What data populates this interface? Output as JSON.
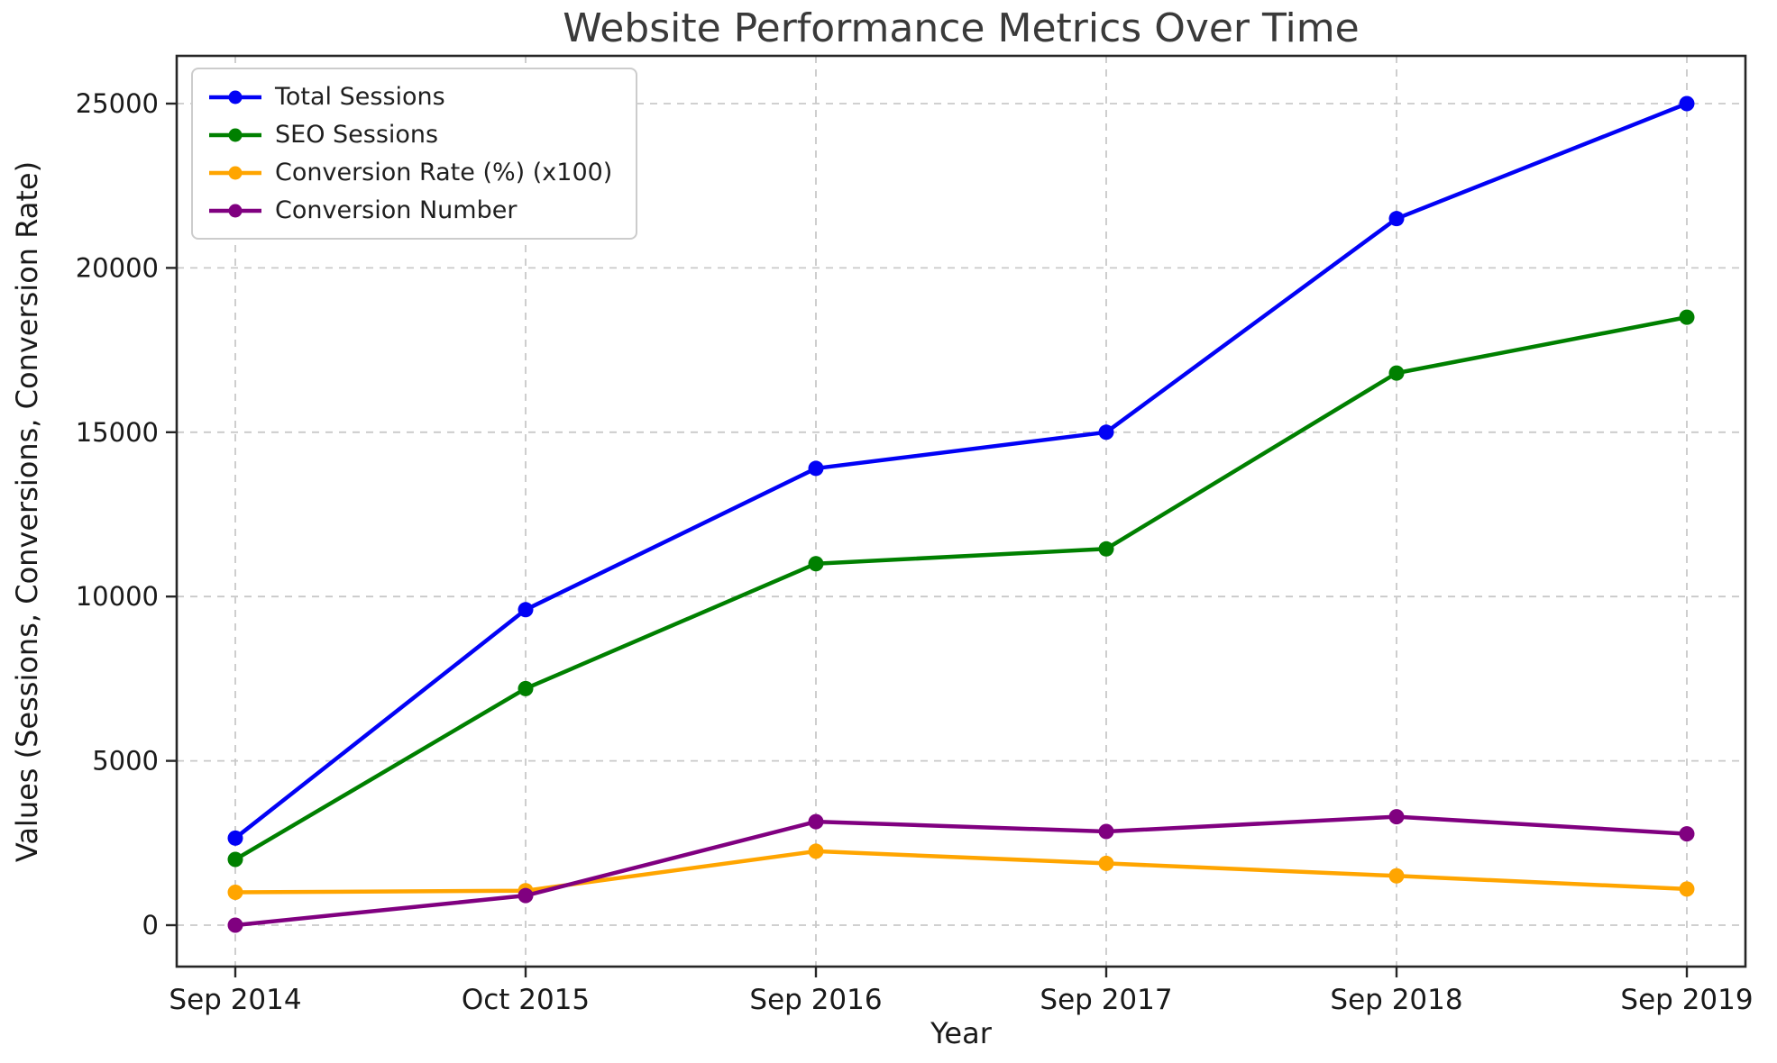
{
  "chart_data": {
    "type": "line",
    "title": "Website Performance Metrics Over Time",
    "xlabel": "Year",
    "ylabel": "Values (Sessions, Conversions, Conversion Rate)",
    "categories": [
      "Sep 2014",
      "Oct 2015",
      "Sep 2016",
      "Sep 2017",
      "Sep 2018",
      "Sep 2019"
    ],
    "series": [
      {
        "name": "Total Sessions",
        "color": "#0202f5",
        "values": [
          2650,
          9600,
          13900,
          15000,
          21500,
          25000
        ]
      },
      {
        "name": "SEO Sessions",
        "color": "#008000",
        "values": [
          2000,
          7200,
          11000,
          11450,
          16800,
          18500
        ]
      },
      {
        "name": "Conversion Rate (%) (x100)",
        "color": "#ffa500",
        "values": [
          1000,
          1050,
          2250,
          1880,
          1500,
          1100
        ]
      },
      {
        "name": "Conversion Number",
        "color": "#800080",
        "values": [
          0,
          900,
          3150,
          2850,
          3300,
          2780
        ]
      }
    ],
    "y_ticks": [
      0,
      5000,
      10000,
      15000,
      20000,
      25000
    ],
    "ylim": [
      -1260,
      26460
    ],
    "grid": true,
    "grid_style": "dashed",
    "legend_position": "upper left",
    "marker": "circle"
  }
}
